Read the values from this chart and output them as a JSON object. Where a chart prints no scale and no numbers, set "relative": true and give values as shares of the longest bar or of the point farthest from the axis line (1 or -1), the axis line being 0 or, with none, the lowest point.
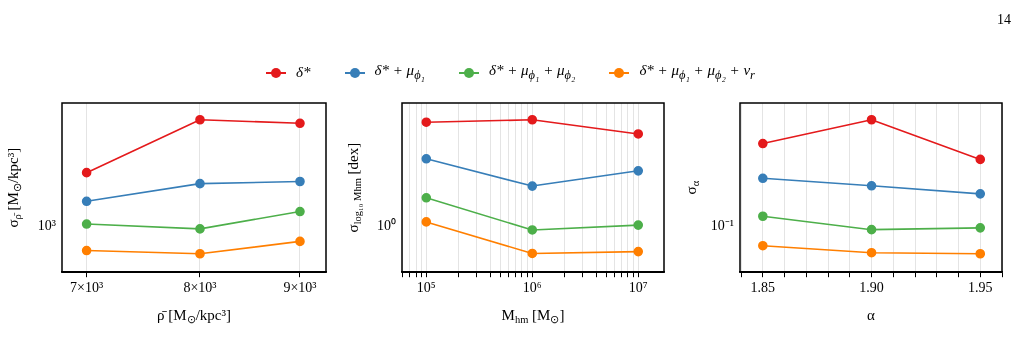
{
  "chart_data": [
    {
      "type": "line",
      "xlabel": "ρ̄ [M$_{⊙}$/kpc³]",
      "ylabel": "σ$_{ρ̄}$ [M$_{⊙}$/kpc³]",
      "log": "x",
      "grid": true,
      "legend": "top",
      "marker": "circle",
      "relative": true,
      "annotations": [
        "10³",
        "14"
      ],
      "x": [
        7000,
        8000,
        9000
      ],
      "xlim": [
        6800,
        9280
      ],
      "xticks": [
        {
          "value": 7000,
          "label": "7×10³"
        },
        {
          "value": 8000,
          "label": "8×10³"
        },
        {
          "value": 9000,
          "label": "9×10³"
        }
      ],
      "series": [
        {
          "name": "δ*",
          "color": "#e41a1c",
          "values": [
            0.653,
            1,
            0.977
          ]
        },
        {
          "name": "δ* + μ$_{ϕ₁}$",
          "color": "#377eb8",
          "values": [
            0.465,
            0.581,
            0.595
          ]
        },
        {
          "name": "δ* + μ$_{ϕ₁}$ + μ$_{ϕ₂}$",
          "color": "#4daf4a",
          "values": [
            0.316,
            0.284,
            0.398
          ]
        },
        {
          "name": "δ* + μ$_{ϕ₁}$ + μ$_{ϕ₂}$ + v$_{r}$",
          "color": "#ff7f00",
          "values": [
            0.142,
            0.121,
            0.202
          ]
        }
      ]
    },
    {
      "type": "line",
      "xlabel": "M$_{hm}$ [M$_{⊙}$]",
      "ylabel": "σ$_{log₁₀ Mhm}$ [dex]",
      "log": "x",
      "grid": true,
      "marker": "circle",
      "relative": true,
      "annotations": [
        "10⁰"
      ],
      "x": [
        100000,
        1000000,
        10000000
      ],
      "xlim": [
        59000,
        17500000
      ],
      "xticks": [
        {
          "value": 60000,
          "label": null
        },
        {
          "value": 70000,
          "label": null
        },
        {
          "value": 80000,
          "label": null
        },
        {
          "value": 90000,
          "label": null
        },
        {
          "value": 100000,
          "label": "10⁵"
        },
        {
          "value": 200000,
          "label": null
        },
        {
          "value": 300000,
          "label": null
        },
        {
          "value": 400000,
          "label": null
        },
        {
          "value": 500000,
          "label": null
        },
        {
          "value": 600000,
          "label": null
        },
        {
          "value": 700000,
          "label": null
        },
        {
          "value": 800000,
          "label": null
        },
        {
          "value": 900000,
          "label": null
        },
        {
          "value": 1000000,
          "label": "10⁶"
        },
        {
          "value": 2000000,
          "label": null
        },
        {
          "value": 3000000,
          "label": null
        },
        {
          "value": 4000000,
          "label": null
        },
        {
          "value": 5000000,
          "label": null
        },
        {
          "value": 6000000,
          "label": null
        },
        {
          "value": 7000000,
          "label": null
        },
        {
          "value": 8000000,
          "label": null
        },
        {
          "value": 9000000,
          "label": null
        },
        {
          "value": 10000000,
          "label": "10⁷"
        }
      ],
      "series": [
        {
          "color": "#e41a1c",
          "values": [
            0.984,
            1,
            0.907
          ]
        },
        {
          "color": "#377eb8",
          "values": [
            0.744,
            0.565,
            0.665
          ]
        },
        {
          "color": "#4daf4a",
          "values": [
            0.488,
            0.277,
            0.309
          ]
        },
        {
          "color": "#ff7f00",
          "values": [
            0.33,
            0.123,
            0.135
          ]
        }
      ]
    },
    {
      "type": "line",
      "xlabel": "α",
      "ylabel": "σ$_{α}$",
      "grid": true,
      "marker": "circle",
      "relative": true,
      "annotations": [
        "10⁻¹"
      ],
      "x": [
        1.85,
        1.9,
        1.95
      ],
      "xlim": [
        1.8395,
        1.96
      ],
      "xticks": [
        {
          "value": 1.84,
          "label": null
        },
        1.85,
        {
          "value": 1.86,
          "label": null
        },
        {
          "value": 1.87,
          "label": null
        },
        {
          "value": 1.88,
          "label": null
        },
        {
          "value": 1.89,
          "label": null
        },
        {
          "value": 1.9,
          "label": "1.90"
        },
        {
          "value": 1.91,
          "label": null
        },
        {
          "value": 1.92,
          "label": null
        },
        {
          "value": 1.93,
          "label": null
        },
        {
          "value": 1.94,
          "label": null
        },
        1.95,
        {
          "value": 1.96,
          "label": null
        }
      ],
      "series": [
        {
          "color": "#e41a1c",
          "values": [
            0.844,
            1,
            0.74
          ]
        },
        {
          "color": "#377eb8",
          "values": [
            0.616,
            0.567,
            0.514
          ]
        },
        {
          "color": "#4daf4a",
          "values": [
            0.367,
            0.279,
            0.291
          ]
        },
        {
          "color": "#ff7f00",
          "values": [
            0.174,
            0.128,
            0.121
          ]
        }
      ]
    }
  ]
}
